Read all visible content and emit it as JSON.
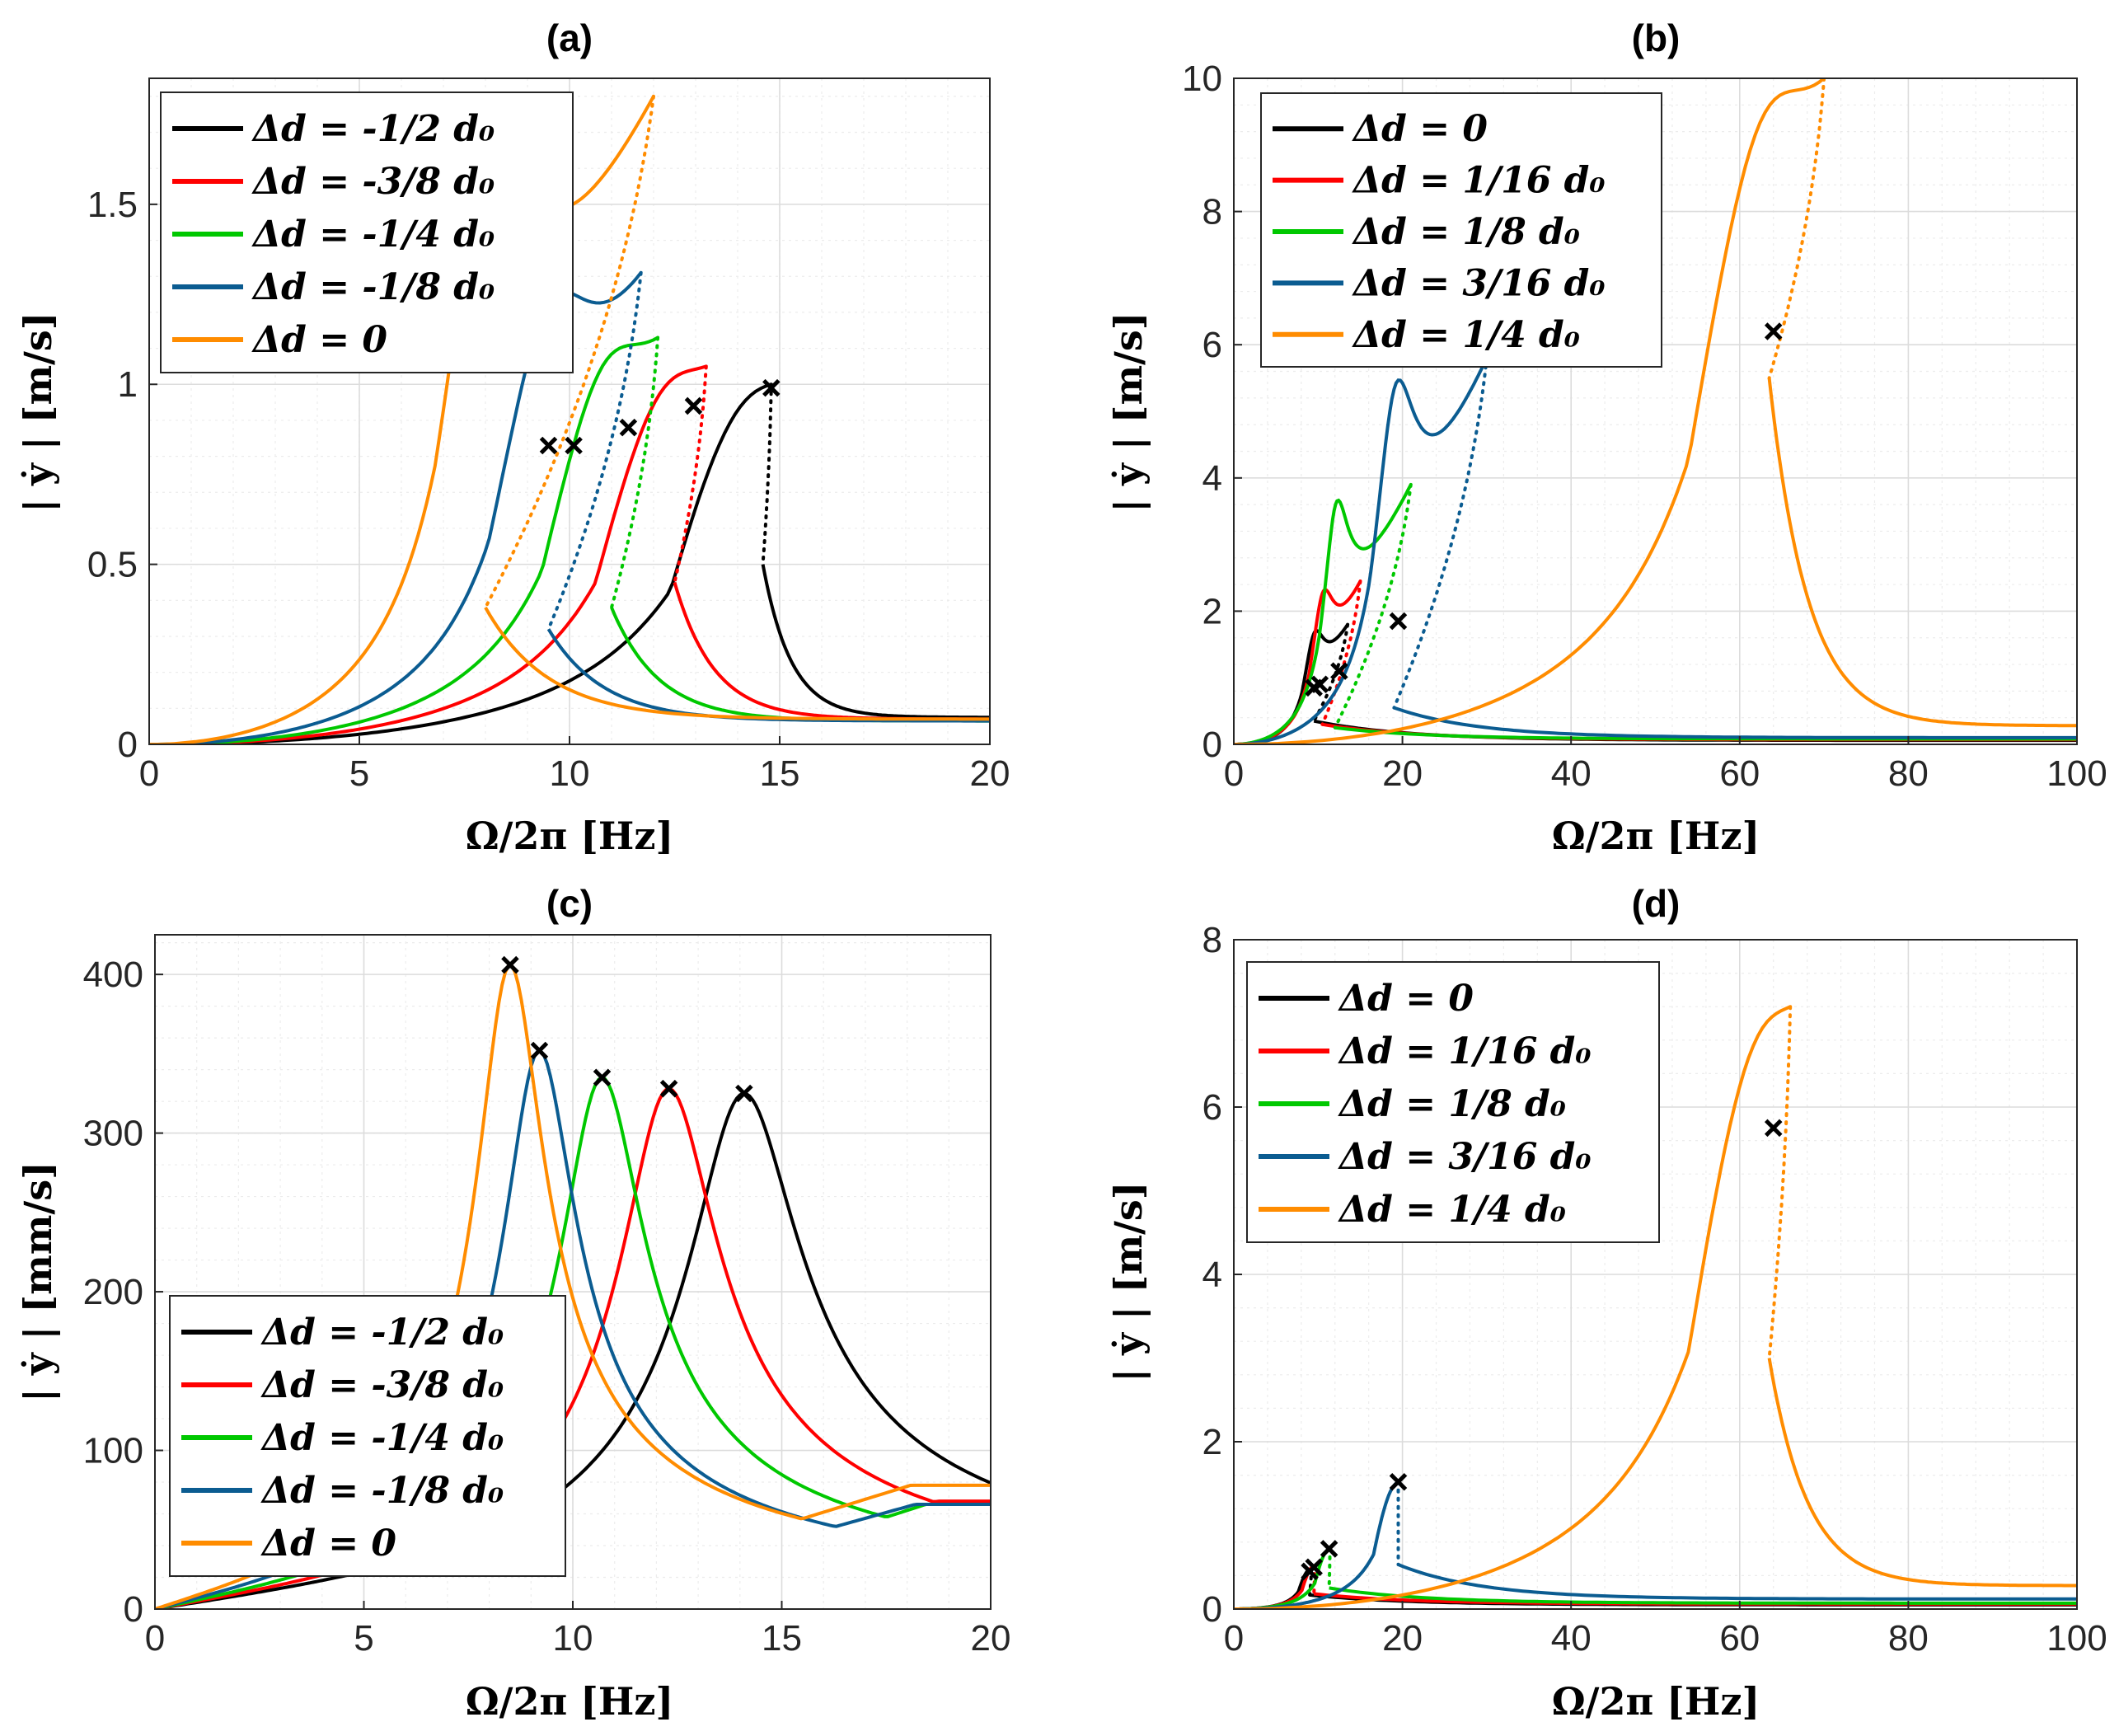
{
  "figure": "Frequency response curves",
  "chart_data": [
    {
      "type": "line",
      "panel": "a",
      "title": "(a)",
      "xlabel": "Ω/2π [Hz]",
      "ylabel": "| ẏ | [m/s]",
      "xlim": [
        0,
        20
      ],
      "ylim": [
        0,
        1.85
      ],
      "xticks": [
        0,
        5,
        10,
        15,
        20
      ],
      "xtick_labels": [
        "0",
        "5",
        "10",
        "15",
        "20"
      ],
      "yticks": [
        0,
        0.5,
        1,
        1.5
      ],
      "ytick_labels": [
        "0",
        "0.5",
        "1",
        "1.5"
      ],
      "grid": true,
      "legend_position": "top-left",
      "series": [
        {
          "name": "Δd = -1/2 d₀",
          "color": "#000000",
          "f0": 14.6,
          "peak": [
            14.8,
            1.0
          ],
          "jump_down": 0.5,
          "tail": 0.075,
          "marker": [
            14.8,
            0.99
          ]
        },
        {
          "name": "Δd = -3/8 d₀",
          "color": "#ff0000",
          "f0": 12.5,
          "peak": [
            13.25,
            1.05
          ],
          "jump_down": 0.45,
          "tail": 0.07,
          "marker": [
            12.95,
            0.94
          ]
        },
        {
          "name": "Δd = -1/4 d₀",
          "color": "#00c800",
          "f0": 11.0,
          "peak": [
            12.1,
            1.13
          ],
          "jump_down": 0.38,
          "tail": 0.065,
          "marker": [
            11.4,
            0.88
          ]
        },
        {
          "name": "Δd = -1/8 d₀",
          "color": "#0b5c91",
          "f0": 9.5,
          "peak": [
            11.7,
            1.31
          ],
          "jump_down": 0.32,
          "tail": 0.065,
          "marker": [
            10.1,
            0.83
          ]
        },
        {
          "name": "Δd = 0",
          "color": "#ff8c00",
          "f0": 8.0,
          "peak": [
            12.0,
            1.8
          ],
          "jump_down": 0.38,
          "tail": 0.07,
          "marker": [
            9.5,
            0.83
          ]
        }
      ]
    },
    {
      "type": "line",
      "panel": "b",
      "title": "(b)",
      "xlabel": "Ω/2π [Hz]",
      "ylabel": "| ẏ | [m/s]",
      "xlim": [
        0,
        100
      ],
      "ylim": [
        0,
        10
      ],
      "xticks": [
        0,
        20,
        40,
        60,
        80,
        100
      ],
      "xtick_labels": [
        "0",
        "20",
        "40",
        "60",
        "80",
        "100"
      ],
      "yticks": [
        0,
        2,
        4,
        6,
        8,
        10
      ],
      "ytick_labels": [
        "0",
        "2",
        "4",
        "6",
        "8",
        "10"
      ],
      "grid": true,
      "legend_position": "top-left",
      "series": [
        {
          "name": "Δd = 0",
          "color": "#000000",
          "f0": 9.5,
          "peak": [
            13.5,
            1.8
          ],
          "jump_down": 0.35,
          "tail": 0.06,
          "marker": [
            9.5,
            0.85
          ]
        },
        {
          "name": "Δd = 1/16 d₀",
          "color": "#ff0000",
          "f0": 10.5,
          "peak": [
            15.0,
            2.45
          ],
          "jump_down": 0.3,
          "tail": 0.07,
          "marker": [
            10.2,
            0.9
          ]
        },
        {
          "name": "Δd = 1/8 d₀",
          "color": "#00c800",
          "f0": 12.0,
          "peak": [
            21.0,
            3.9
          ],
          "jump_down": 0.25,
          "tail": 0.08,
          "marker": [
            12.5,
            1.1
          ]
        },
        {
          "name": "Δd = 3/16 d₀",
          "color": "#0b5c91",
          "f0": 19.0,
          "peak": [
            30.0,
            5.8
          ],
          "jump_down": 0.55,
          "tail": 0.1,
          "marker": [
            19.5,
            1.85
          ]
        },
        {
          "name": "Δd = 1/4 d₀",
          "color": "#ff8c00",
          "f0": 63.5,
          "peak": [
            70.0,
            10.0
          ],
          "jump_down": 5.5,
          "tail": 0.28,
          "marker": [
            64.0,
            6.2
          ]
        }
      ]
    },
    {
      "type": "line",
      "panel": "c",
      "title": "(c)",
      "xlabel": "Ω/2π [Hz]",
      "ylabel": "| ẏ | [mm/s]",
      "xlim": [
        0,
        20
      ],
      "ylim": [
        0,
        425
      ],
      "xticks": [
        0,
        5,
        10,
        15,
        20
      ],
      "xtick_labels": [
        "0",
        "5",
        "10",
        "15",
        "20"
      ],
      "yticks": [
        0,
        100,
        200,
        300,
        400
      ],
      "ytick_labels": [
        "0",
        "100",
        "200",
        "300",
        "400"
      ],
      "grid": true,
      "legend_position": "bottom-left",
      "series": [
        {
          "name": "Δd = -1/2 d₀",
          "color": "#000000",
          "peak": [
            14.1,
            325
          ],
          "tail": 75,
          "marker": [
            14.1,
            325
          ]
        },
        {
          "name": "Δd = -3/8 d₀",
          "color": "#ff0000",
          "peak": [
            12.3,
            328
          ],
          "tail": 68,
          "marker": [
            12.3,
            328
          ]
        },
        {
          "name": "Δd = -1/4 d₀",
          "color": "#00c800",
          "peak": [
            10.7,
            335
          ],
          "tail": 66,
          "marker": [
            10.7,
            335
          ]
        },
        {
          "name": "Δd = -1/8 d₀",
          "color": "#0b5c91",
          "peak": [
            9.2,
            352
          ],
          "tail": 66,
          "marker": [
            9.2,
            352
          ]
        },
        {
          "name": "Δd = 0",
          "color": "#ff8c00",
          "peak": [
            8.5,
            406
          ],
          "tail": 78,
          "marker": [
            8.5,
            406
          ]
        }
      ]
    },
    {
      "type": "line",
      "panel": "d",
      "title": "(d)",
      "xlabel": "Ω/2π [Hz]",
      "ylabel": "| ẏ | [m/s]",
      "xlim": [
        0,
        100
      ],
      "ylim": [
        0,
        8
      ],
      "xticks": [
        0,
        20,
        40,
        60,
        80,
        100
      ],
      "xtick_labels": [
        "0",
        "20",
        "40",
        "60",
        "80",
        "100"
      ],
      "yticks": [
        0,
        2,
        4,
        6,
        8
      ],
      "ytick_labels": [
        "0",
        "2",
        "4",
        "6",
        "8"
      ],
      "grid": true,
      "legend_position": "top-left",
      "series": [
        {
          "name": "Δd = 0",
          "color": "#000000",
          "f0": 9.0,
          "peak": [
            9.2,
            0.48
          ],
          "tail": 0.05,
          "marker": [
            9.0,
            0.45
          ]
        },
        {
          "name": "Δd = 1/16 d₀",
          "color": "#ff0000",
          "f0": 9.5,
          "peak": [
            9.6,
            0.52
          ],
          "tail": 0.06,
          "marker": [
            9.5,
            0.5
          ]
        },
        {
          "name": "Δd = 1/8 d₀",
          "color": "#00c800",
          "f0": 11.3,
          "peak": [
            11.4,
            0.72
          ],
          "tail": 0.07,
          "marker": [
            11.3,
            0.72
          ]
        },
        {
          "name": "Δd = 3/16 d₀",
          "color": "#0b5c91",
          "f0": 19.5,
          "peak": [
            19.5,
            1.52
          ],
          "tail": 0.12,
          "marker": [
            19.5,
            1.52
          ]
        },
        {
          "name": "Δd = 1/4 d₀",
          "color": "#ff8c00",
          "f0": 63.5,
          "peak": [
            66.0,
            7.2
          ],
          "jump_down": 3.0,
          "tail": 0.28,
          "marker": [
            64.0,
            5.75
          ]
        }
      ]
    }
  ]
}
